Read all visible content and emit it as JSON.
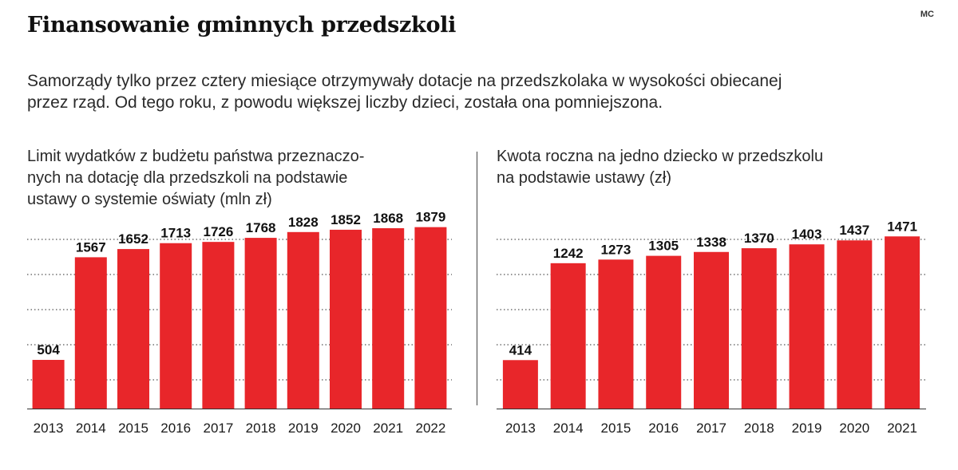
{
  "header": {
    "title": "Finansowanie gminnych przedszkoli",
    "credit": "MC",
    "subtitle_line1": "Samorządy tylko przez cztery miesiące otrzymywały dotacje na przedszkolaka w wysokości obiecanej",
    "subtitle_line2": "przez rząd. Od tego roku, z powodu większej liczby dzieci, została ona pomniejszona."
  },
  "colors": {
    "bar": "#e8262a",
    "gridline": "#555555",
    "baseline": "#333333"
  },
  "chart_data": [
    {
      "type": "bar",
      "title_lines": [
        "Limit wydatków z budżetu państwa przeznaczo-",
        "nych na dotację dla przedszkoli na podstawie",
        "ustawy o systemie oświaty (mln zł)"
      ],
      "categories": [
        "2013",
        "2014",
        "2015",
        "2016",
        "2017",
        "2018",
        "2019",
        "2020",
        "2021",
        "2022"
      ],
      "values": [
        504,
        1567,
        1652,
        1713,
        1726,
        1768,
        1828,
        1852,
        1868,
        1879
      ],
      "data_labels": [
        "504",
        "1567",
        "1652",
        "1713",
        "1726",
        "1768",
        "1828",
        "1852",
        "1868",
        "1879"
      ],
      "ylim": [
        0,
        2000
      ],
      "grid": true
    },
    {
      "type": "bar",
      "title_lines": [
        "Kwota roczna na jedno dziecko w przedszkolu",
        "na podstawie ustawy (zł)"
      ],
      "categories": [
        "2013",
        "2014",
        "2015",
        "2016",
        "2017",
        "2018",
        "2019",
        "2020",
        "2021"
      ],
      "values": [
        414,
        1242,
        1273,
        1305,
        1338,
        1370,
        1403,
        1437,
        1471
      ],
      "data_labels": [
        "414",
        "1242",
        "1273",
        "1305",
        "1338",
        "1370",
        "1403",
        "1437",
        "1471"
      ],
      "ylim": [
        0,
        1650
      ],
      "grid": true
    }
  ]
}
